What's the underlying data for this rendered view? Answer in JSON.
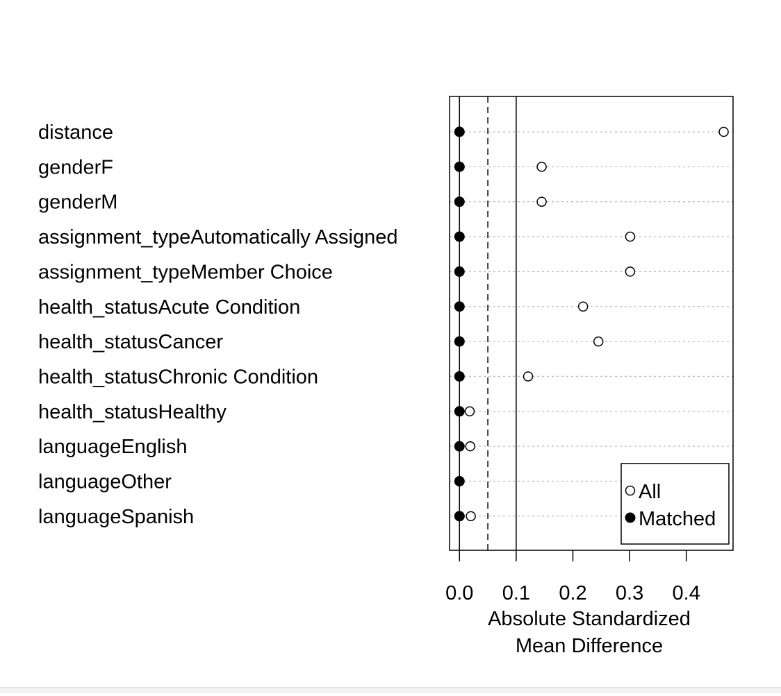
{
  "chart_data": {
    "type": "scatter",
    "title": "",
    "xlabel_lines": [
      "Absolute Standardized",
      "Mean Difference"
    ],
    "ylabel": "",
    "xlim": [
      -0.0175,
      0.4825
    ],
    "xticks": [
      0.0,
      0.1,
      0.2,
      0.3,
      0.4
    ],
    "xtick_labels": [
      "0.0",
      "0.1",
      "0.2",
      "0.3",
      "0.4"
    ],
    "grid": "horizontal dotted",
    "reference_lines": [
      {
        "x": 0.0,
        "style": "solid"
      },
      {
        "x": 0.05,
        "style": "dashed"
      },
      {
        "x": 0.1,
        "style": "solid"
      }
    ],
    "categories": [
      "distance",
      "genderF",
      "genderM",
      "assignment_typeAutomatically Assigned",
      "assignment_typeMember Choice",
      "health_statusAcute Condition",
      "health_statusCancer",
      "health_statusChronic Condition",
      "health_statusHealthy",
      "languageEnglish",
      "languageOther",
      "languageSpanish"
    ],
    "series": [
      {
        "name": "All",
        "marker": "open-circle",
        "values": [
          0.466,
          0.145,
          0.145,
          0.301,
          0.301,
          0.218,
          0.245,
          0.121,
          0.018,
          0.019,
          0.0,
          0.02
        ]
      },
      {
        "name": "Matched",
        "marker": "filled-circle",
        "values": [
          0.0,
          0.0,
          0.0,
          0.0,
          0.0,
          0.0,
          0.0,
          0.0,
          0.0,
          0.0,
          0.0,
          0.0
        ]
      }
    ],
    "legend_position": "bottom-right"
  }
}
